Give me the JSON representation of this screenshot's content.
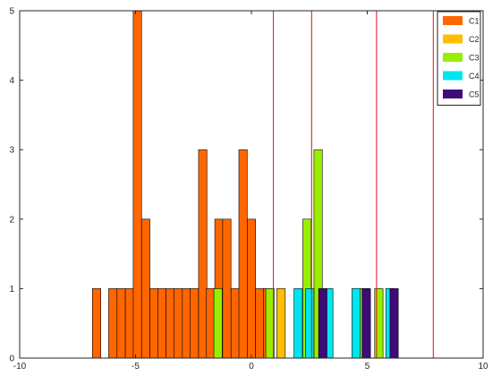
{
  "chart_data": {
    "type": "bar",
    "title": "",
    "xlabel": "",
    "ylabel": "",
    "xlim": [
      -10,
      10
    ],
    "ylim": [
      0,
      5
    ],
    "x_ticks": [
      -10,
      -5,
      0,
      5,
      10
    ],
    "y_ticks": [
      0,
      1,
      2,
      3,
      4,
      5
    ],
    "grid": false,
    "legend_position": "top-right",
    "bar_width": 0.36,
    "series": [
      {
        "name": "C1",
        "color": "#ff6600",
        "bins": [
          {
            "x": -6.68,
            "count": 1
          },
          {
            "x": -5.98,
            "count": 1
          },
          {
            "x": -5.62,
            "count": 1
          },
          {
            "x": -5.26,
            "count": 1
          },
          {
            "x": -4.92,
            "count": 5
          },
          {
            "x": -4.56,
            "count": 2
          },
          {
            "x": -4.2,
            "count": 1
          },
          {
            "x": -3.86,
            "count": 1
          },
          {
            "x": -3.5,
            "count": 1
          },
          {
            "x": -3.16,
            "count": 1
          },
          {
            "x": -2.8,
            "count": 1
          },
          {
            "x": -2.46,
            "count": 1
          },
          {
            "x": -2.1,
            "count": 3
          },
          {
            "x": -1.76,
            "count": 1
          },
          {
            "x": -1.4,
            "count": 2
          },
          {
            "x": -1.06,
            "count": 2
          },
          {
            "x": -0.7,
            "count": 1
          },
          {
            "x": -0.36,
            "count": 3
          },
          {
            "x": 0.0,
            "count": 2
          },
          {
            "x": 0.36,
            "count": 1
          },
          {
            "x": 0.7,
            "count": 1
          }
        ]
      },
      {
        "name": "C2",
        "color": "#ffbf00",
        "bins": [
          {
            "x": 1.28,
            "count": 1
          }
        ]
      },
      {
        "name": "C3",
        "color": "#99ee00",
        "bins": [
          {
            "x": -1.44,
            "count": 1
          },
          {
            "x": 0.8,
            "count": 1
          },
          {
            "x": 2.4,
            "count": 2
          },
          {
            "x": 2.88,
            "count": 3
          },
          {
            "x": 4.88,
            "count": 1
          },
          {
            "x": 5.5,
            "count": 1
          }
        ]
      },
      {
        "name": "C4",
        "color": "#00e5ee",
        "bins": [
          {
            "x": 2.02,
            "count": 1
          },
          {
            "x": 2.52,
            "count": 1
          },
          {
            "x": 3.34,
            "count": 1
          },
          {
            "x": 4.52,
            "count": 1
          },
          {
            "x": 5.98,
            "count": 1
          }
        ]
      },
      {
        "name": "C5",
        "color": "#3f0a7a",
        "bins": [
          {
            "x": 3.08,
            "count": 1
          },
          {
            "x": 4.96,
            "count": 1
          },
          {
            "x": 6.16,
            "count": 1
          }
        ]
      }
    ],
    "vertical_lines": {
      "color": "#e01010",
      "x": [
        0.95,
        2.6,
        5.4,
        7.85
      ]
    }
  }
}
